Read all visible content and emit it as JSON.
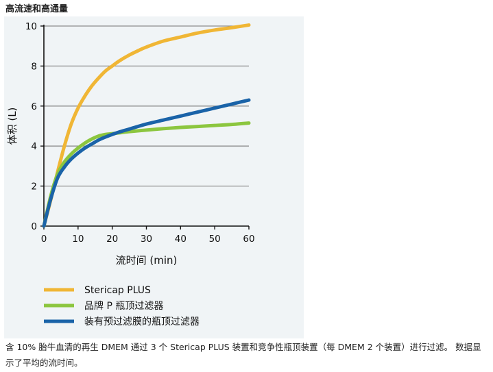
{
  "page": {
    "title": "高流速和高通量",
    "caption": "含 10% 胎牛血清的再生 DMEM 通过 3 个 Stericap PLUS 装置和竞争性瓶顶装置（每 DMEM 2 个装置）进行过滤。 数据显示了平均的流时间。"
  },
  "chart_data": {
    "type": "line",
    "title": "",
    "xlabel": "流时间 (min)",
    "ylabel": "体积 (L)",
    "xlim": [
      0,
      60
    ],
    "ylim": [
      0,
      10
    ],
    "xticks": [
      0,
      10,
      20,
      30,
      40,
      50,
      60
    ],
    "yticks": [
      0,
      2,
      4,
      6,
      8,
      10
    ],
    "grid": "horizontal",
    "legend_position": "bottom",
    "series": [
      {
        "name": "Stericap PLUS",
        "color": "#f0b635",
        "x": [
          0,
          2,
          4,
          6,
          8,
          10,
          12,
          14,
          16,
          18,
          20,
          22,
          25,
          28,
          30,
          35,
          40,
          45,
          50,
          55,
          60
        ],
        "y": [
          0,
          1.3,
          2.7,
          4.0,
          5.1,
          5.9,
          6.5,
          7.0,
          7.4,
          7.75,
          8.0,
          8.25,
          8.55,
          8.8,
          8.95,
          9.25,
          9.45,
          9.65,
          9.8,
          9.92,
          10.05
        ]
      },
      {
        "name": "品牌  P  瓶顶过滤器",
        "color": "#8cc63f",
        "x": [
          0,
          2,
          4,
          6,
          8,
          10,
          12,
          14,
          16,
          18,
          20,
          22,
          25,
          30,
          35,
          40,
          45,
          50,
          55,
          60
        ],
        "y": [
          0,
          1.5,
          2.6,
          3.2,
          3.6,
          3.9,
          4.15,
          4.35,
          4.5,
          4.58,
          4.62,
          4.66,
          4.72,
          4.8,
          4.87,
          4.93,
          4.98,
          5.03,
          5.08,
          5.15
        ]
      },
      {
        "name": "装有预过滤膜的瓶顶过滤器",
        "color": "#1a63a8",
        "x": [
          0,
          2,
          4,
          6,
          8,
          10,
          12,
          14,
          16,
          18,
          20,
          22,
          25,
          30,
          35,
          40,
          45,
          50,
          55,
          60
        ],
        "y": [
          0,
          1.35,
          2.4,
          2.95,
          3.35,
          3.65,
          3.9,
          4.1,
          4.3,
          4.45,
          4.58,
          4.7,
          4.85,
          5.1,
          5.3,
          5.5,
          5.7,
          5.9,
          6.1,
          6.3
        ]
      }
    ]
  }
}
